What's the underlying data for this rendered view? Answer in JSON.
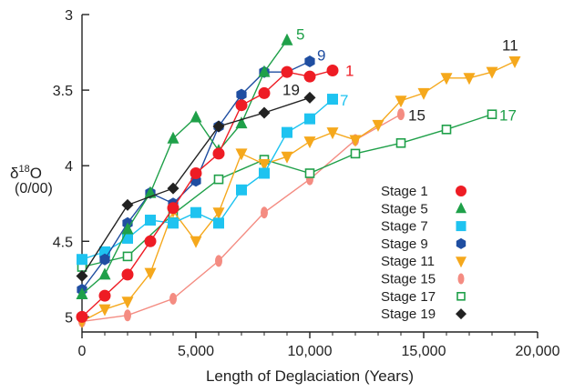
{
  "chart_data": {
    "type": "line",
    "xlabel": "Length of Deglaciation (Years)",
    "ylabel": "δ18O",
    "ylabel_main": "δ",
    "ylabel_sup": "18",
    "ylabel_tail": "O",
    "ylabel_units": "(0/00)",
    "xlim": [
      0,
      20000
    ],
    "ylim": [
      5.1,
      3.0
    ],
    "y_inverted": true,
    "x_ticks": [
      0,
      5000,
      10000,
      15000,
      20000
    ],
    "x_tick_labels": [
      "0",
      "5,000",
      "10,000",
      "15,000",
      "20,000"
    ],
    "y_ticks": [
      3,
      3.5,
      4,
      4.5,
      5
    ],
    "y_tick_labels": [
      "3",
      "3.5",
      "4",
      "4.5",
      "5"
    ],
    "legend_position": "right",
    "series": [
      {
        "name": "Stage 1",
        "end_label": "1",
        "color": "#ee1c24",
        "marker": "circle",
        "x": [
          0,
          1000,
          2000,
          3000,
          4000,
          5000,
          6000,
          7000,
          8000,
          9000,
          10000,
          11000
        ],
        "y": [
          5.0,
          4.86,
          4.72,
          4.5,
          4.28,
          4.05,
          3.92,
          3.6,
          3.52,
          3.38,
          3.41,
          3.37
        ]
      },
      {
        "name": "Stage 5",
        "end_label": "5",
        "color": "#1fa049",
        "marker": "triangle-up",
        "x": [
          0,
          1000,
          2000,
          3000,
          4000,
          5000,
          6000,
          7000,
          8000,
          9000
        ],
        "y": [
          4.85,
          4.72,
          4.42,
          4.18,
          3.82,
          3.68,
          3.9,
          3.72,
          3.38,
          3.17
        ]
      },
      {
        "name": "Stage 7",
        "end_label": "7",
        "color": "#1ec3f0",
        "marker": "square",
        "x": [
          0,
          1000,
          2000,
          3000,
          4000,
          5000,
          6000,
          7000,
          8000,
          9000,
          10000,
          11000
        ],
        "y": [
          4.62,
          4.57,
          4.48,
          4.36,
          4.38,
          4.31,
          4.38,
          4.16,
          4.05,
          3.78,
          3.69,
          3.56
        ]
      },
      {
        "name": "Stage 9",
        "end_label": "9",
        "color": "#1f4ea1",
        "marker": "hexagon",
        "x": [
          0,
          1000,
          2000,
          3000,
          4000,
          5000,
          6000,
          7000,
          8000,
          9000,
          10000
        ],
        "y": [
          4.82,
          4.62,
          4.38,
          4.18,
          4.25,
          4.1,
          3.74,
          3.53,
          3.38,
          3.38,
          3.31
        ]
      },
      {
        "name": "Stage 11",
        "end_label": "11",
        "color": "#f5a81c",
        "marker": "triangle-down",
        "x": [
          0,
          1000,
          2000,
          3000,
          4000,
          5000,
          6000,
          7000,
          8000,
          9000,
          10000,
          11000,
          12000,
          13000,
          14000,
          15000,
          16000,
          17000,
          18000,
          19000
        ],
        "y": [
          5.03,
          4.95,
          4.9,
          4.71,
          4.3,
          4.5,
          4.31,
          3.92,
          3.99,
          3.94,
          3.84,
          3.78,
          3.83,
          3.73,
          3.57,
          3.52,
          3.42,
          3.42,
          3.38,
          3.31
        ]
      },
      {
        "name": "Stage 15",
        "end_label": "15",
        "color": "#f48c82",
        "marker": "ellipse",
        "x": [
          0,
          2000,
          4000,
          6000,
          8000,
          10000,
          12000,
          14000
        ],
        "y": [
          5.03,
          4.99,
          4.88,
          4.63,
          4.31,
          4.09,
          3.83,
          3.66
        ]
      },
      {
        "name": "Stage 17",
        "end_label": "17",
        "color": "#1fa049",
        "marker": "open-square",
        "x": [
          0,
          2000,
          4000,
          6000,
          8000,
          10000,
          12000,
          14000,
          16000,
          18000
        ],
        "y": [
          4.67,
          4.6,
          4.32,
          4.09,
          3.96,
          4.05,
          3.92,
          3.85,
          3.76,
          3.66
        ]
      },
      {
        "name": "Stage 19",
        "end_label": "19",
        "color": "#222222",
        "marker": "diamond",
        "x": [
          0,
          2000,
          4000,
          6000,
          8000,
          10000
        ],
        "y": [
          4.73,
          4.26,
          4.15,
          3.74,
          3.65,
          3.55
        ]
      }
    ]
  }
}
